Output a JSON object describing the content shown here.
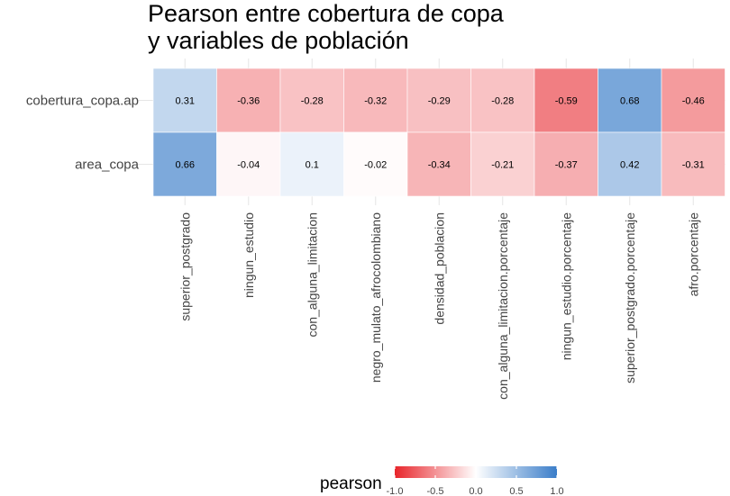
{
  "chart_data": {
    "type": "heatmap",
    "title": [
      "Pearson entre cobertura de copa",
      "y variables de población"
    ],
    "x_categories": [
      "superior_postgrado",
      "ningun_estudio",
      "con_alguna_limitacion",
      "negro_mulato_afrocolombiano",
      "densidad_poblacion",
      "con_alguna_limitacion.porcentaje",
      "ningun_estudio.porcentaje",
      "superior_postgrado.porcentaje",
      "afro.porcentaje"
    ],
    "y_categories": [
      "cobertura_copa.ap",
      "area_copa"
    ],
    "values": [
      [
        0.31,
        -0.36,
        -0.28,
        -0.32,
        -0.29,
        -0.28,
        -0.59,
        0.68,
        -0.46
      ],
      [
        0.66,
        -0.04,
        0.1,
        -0.02,
        -0.34,
        -0.21,
        -0.37,
        0.42,
        -0.31
      ]
    ],
    "color_scale": {
      "low": "#e8252b",
      "mid": "#ffffff",
      "high": "#3a7dc9",
      "limits": [
        -1,
        1
      ]
    },
    "legend": {
      "title": "pearson",
      "position": "bottom",
      "ticks": [
        -1.0,
        -0.5,
        0.0,
        0.5,
        1.0
      ],
      "tick_labels": [
        "-1.0",
        "-0.5",
        "0.0",
        "0.5",
        "1.0"
      ]
    },
    "grid": true
  }
}
